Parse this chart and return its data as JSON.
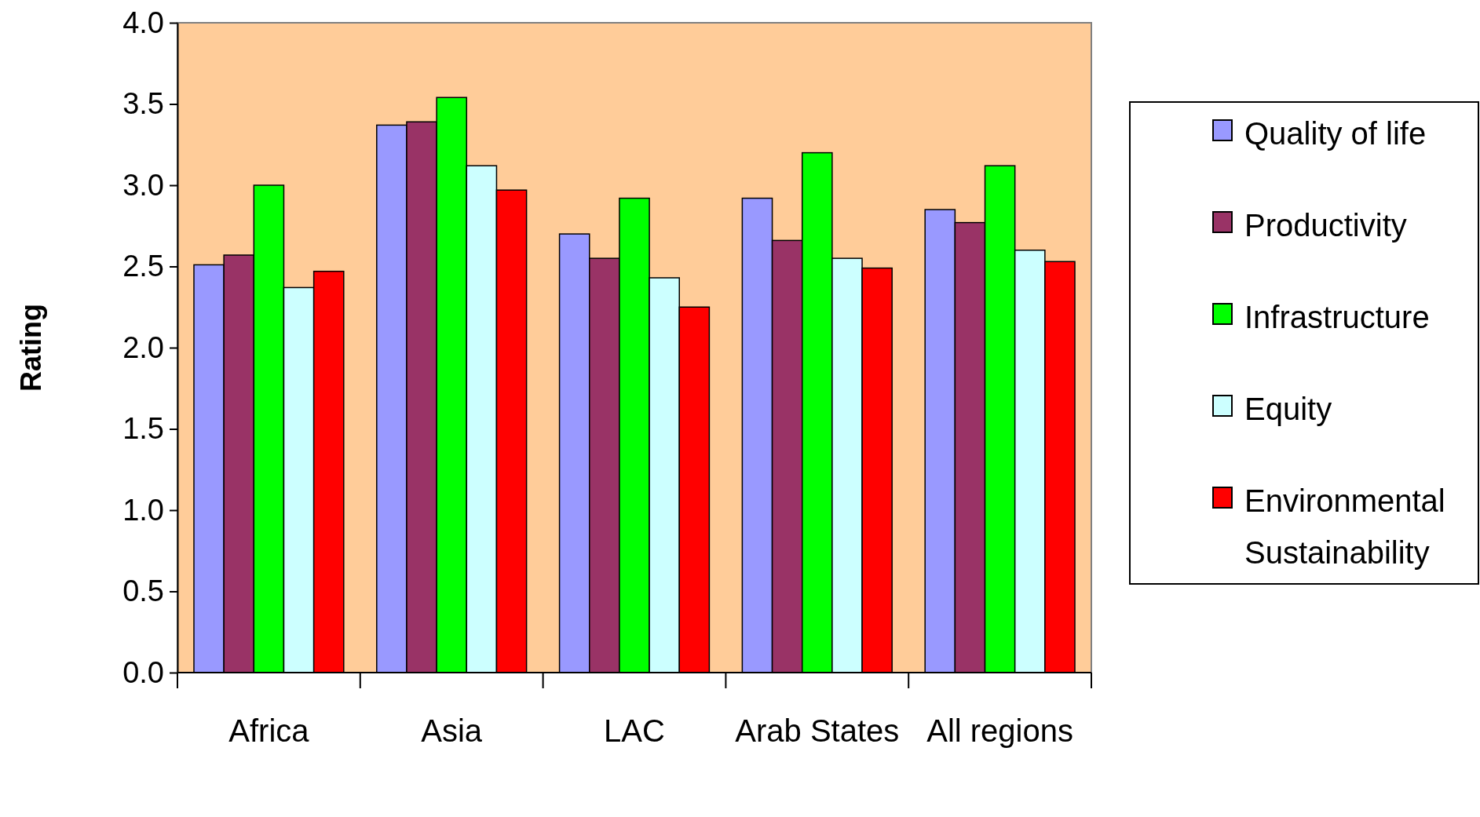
{
  "chart_data": {
    "type": "bar",
    "ylabel": "Rating",
    "categories": [
      "Africa",
      "Asia",
      "LAC",
      "Arab States",
      "All regions"
    ],
    "series": [
      {
        "name": "Quality of life",
        "color": "#9999ff",
        "values": [
          2.51,
          3.37,
          2.7,
          2.92,
          2.85
        ]
      },
      {
        "name": "Productivity",
        "color": "#993366",
        "values": [
          2.57,
          3.39,
          2.55,
          2.66,
          2.77
        ]
      },
      {
        "name": "Infrastructure",
        "color": "#00ff00",
        "values": [
          3.0,
          3.54,
          2.92,
          3.2,
          3.12
        ]
      },
      {
        "name": "Equity",
        "color": "#ccffff",
        "values": [
          2.37,
          3.12,
          2.43,
          2.55,
          2.6
        ]
      },
      {
        "name": "Environmental Sustainability",
        "color": "#ff0000",
        "values": [
          2.47,
          2.97,
          2.25,
          2.49,
          2.53
        ]
      }
    ],
    "ylim": [
      0,
      4
    ],
    "yticks": [
      {
        "value": 0,
        "label": "0.0"
      },
      {
        "value": 0.5,
        "label": "0.5"
      },
      {
        "value": 1,
        "label": "1.0"
      },
      {
        "value": 1.5,
        "label": "1.5"
      },
      {
        "value": 2,
        "label": "2.0"
      },
      {
        "value": 2.5,
        "label": "2.5"
      },
      {
        "value": 3,
        "label": "3.0"
      },
      {
        "value": 3.5,
        "label": "3.5"
      },
      {
        "value": 4,
        "label": "4.0"
      }
    ],
    "grid": false,
    "legend": "right"
  }
}
